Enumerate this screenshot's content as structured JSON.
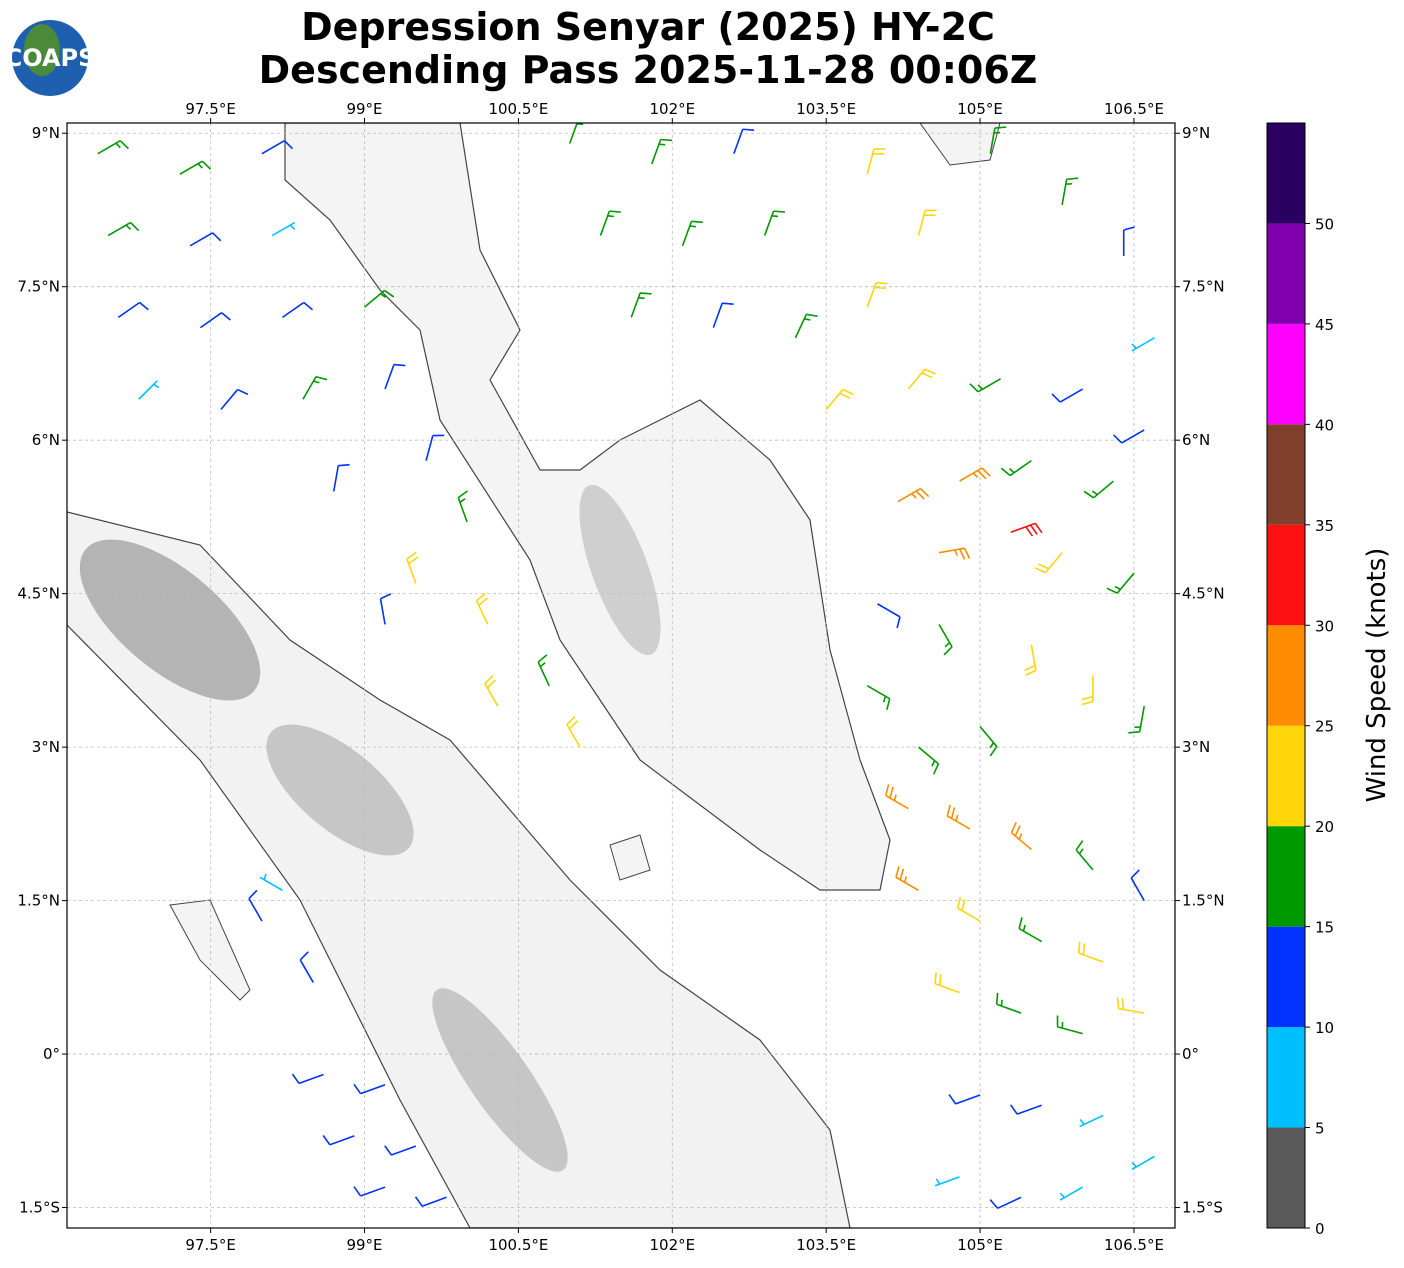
{
  "chart_data": {
    "type": "wind-barb-map",
    "logo_text": "COAPS",
    "title": [
      "Depression Senyar (2025) HY-2C",
      "Descending Pass 2025-11-28 00:06Z"
    ],
    "xlim": [
      96.1,
      106.9
    ],
    "ylim": [
      -1.7,
      9.1
    ],
    "xticks": [
      {
        "value": 97.5,
        "label": "97.5°E"
      },
      {
        "value": 99,
        "label": "99°E"
      },
      {
        "value": 100.5,
        "label": "100.5°E"
      },
      {
        "value": 102,
        "label": "102°E"
      },
      {
        "value": 103.5,
        "label": "103.5°E"
      },
      {
        "value": 105,
        "label": "105°E"
      },
      {
        "value": 106.5,
        "label": "106.5°E"
      }
    ],
    "yticks": [
      {
        "value": 9,
        "label": "9°N"
      },
      {
        "value": 7.5,
        "label": "7.5°N"
      },
      {
        "value": 6,
        "label": "6°N"
      },
      {
        "value": 4.5,
        "label": "4.5°N"
      },
      {
        "value": 3,
        "label": "3°N"
      },
      {
        "value": 1.5,
        "label": "1.5°N"
      },
      {
        "value": 0,
        "label": "0°"
      },
      {
        "value": -1.5,
        "label": "1.5°S"
      }
    ],
    "grid": true,
    "colorbar": {
      "label": "Wind Speed (knots)",
      "levels": [
        0,
        5,
        10,
        15,
        20,
        25,
        30,
        35,
        40,
        45,
        50,
        55
      ],
      "colors": [
        "#595959",
        "#00bfff",
        "#0033ff",
        "#009900",
        "#ffd60a",
        "#ff8c00",
        "#ff1010",
        "#7f3f2a",
        "#ff00ff",
        "#8000b0",
        "#2a0060"
      ],
      "ticks": [
        0,
        5,
        10,
        15,
        20,
        25,
        30,
        35,
        40,
        45,
        50
      ]
    },
    "barbs": {
      "lon": [
        96.4,
        97.2,
        98.0,
        96.5,
        97.3,
        98.1,
        96.6,
        97.4,
        98.2,
        99.0,
        96.8,
        97.6,
        98.4,
        99.2,
        99.6,
        100.0,
        99.5,
        100.2,
        100.8,
        100.3,
        101.1,
        98.7,
        99.2,
        101.0,
        101.8,
        102.6,
        101.3,
        102.1,
        102.9,
        101.6,
        102.4,
        103.2,
        103.9,
        104.4,
        103.9,
        103.5,
        104.3,
        105.1,
        105.8,
        106.4,
        106.7,
        105.2,
        106.0,
        106.6,
        105.5,
        106.3,
        104.2,
        104.8,
        105.3,
        104.6,
        105.8,
        106.5,
        104.0,
        104.6,
        105.5,
        106.1,
        106.6,
        103.9,
        104.4,
        105.0,
        104.3,
        104.9,
        105.5,
        106.1,
        106.6,
        104.4,
        105.0,
        105.6,
        106.2,
        104.8,
        105.4,
        106.0,
        106.6,
        105.0,
        105.6,
        106.2,
        106.7,
        104.8,
        105.4,
        106.0,
        98.6,
        99.2,
        98.9,
        99.5,
        99.2,
        99.8,
        98.0,
        98.5,
        98.2
      ],
      "lat": [
        8.8,
        8.6,
        8.8,
        8.0,
        7.9,
        8.0,
        7.2,
        7.1,
        7.2,
        7.3,
        6.4,
        6.3,
        6.4,
        6.5,
        5.8,
        5.2,
        4.6,
        4.2,
        3.6,
        3.4,
        3.0,
        5.5,
        4.2,
        8.9,
        8.7,
        8.8,
        8.0,
        7.9,
        8.0,
        7.2,
        7.1,
        7.0,
        8.6,
        8.0,
        7.3,
        6.3,
        6.5,
        8.8,
        8.3,
        7.8,
        7.0,
        6.6,
        6.5,
        6.1,
        5.8,
        5.6,
        5.4,
        5.6,
        5.1,
        4.9,
        4.9,
        4.7,
        4.4,
        4.2,
        4.0,
        3.7,
        3.4,
        3.6,
        3.0,
        3.2,
        2.4,
        2.2,
        2.0,
        1.8,
        1.5,
        1.6,
        1.3,
        1.1,
        0.9,
        0.6,
        0.4,
        0.2,
        0.4,
        -0.4,
        -0.5,
        -0.6,
        -1.0,
        -1.2,
        -1.4,
        -1.3,
        -0.2,
        -0.3,
        -0.8,
        -0.9,
        -1.3,
        -1.4,
        1.3,
        0.7,
        1.6
      ],
      "speed": [
        17,
        16,
        13,
        16,
        13,
        9,
        13,
        12,
        14,
        17,
        9,
        12,
        16,
        14,
        13,
        17,
        22,
        21,
        19,
        22,
        22,
        12,
        13,
        17,
        16,
        14,
        18,
        16,
        18,
        17,
        13,
        17,
        22,
        23,
        21,
        22,
        23,
        17,
        17,
        12,
        8,
        18,
        13,
        14,
        17,
        18,
        27,
        26,
        32,
        27,
        22,
        18,
        12,
        16,
        21,
        24,
        18,
        16,
        17,
        16,
        27,
        25,
        25,
        17,
        13,
        26,
        22,
        18,
        23,
        22,
        18,
        17,
        22,
        13,
        11,
        9,
        8,
        8,
        12,
        8,
        13,
        12,
        13,
        11,
        12,
        10,
        12,
        12,
        7
      ],
      "direction": [
        60,
        60,
        60,
        60,
        60,
        60,
        55,
        55,
        55,
        50,
        45,
        40,
        30,
        20,
        15,
        340,
        340,
        335,
        335,
        330,
        330,
        10,
        350,
        20,
        20,
        20,
        20,
        20,
        20,
        20,
        20,
        25,
        15,
        15,
        20,
        40,
        40,
        10,
        10,
        0,
        240,
        240,
        240,
        240,
        235,
        230,
        60,
        60,
        70,
        80,
        220,
        220,
        120,
        150,
        170,
        180,
        190,
        120,
        130,
        140,
        300,
        300,
        310,
        320,
        330,
        300,
        300,
        300,
        290,
        290,
        290,
        285,
        280,
        250,
        250,
        245,
        240,
        250,
        245,
        240,
        250,
        250,
        250,
        250,
        250,
        250,
        330,
        330,
        300
      ]
    }
  }
}
